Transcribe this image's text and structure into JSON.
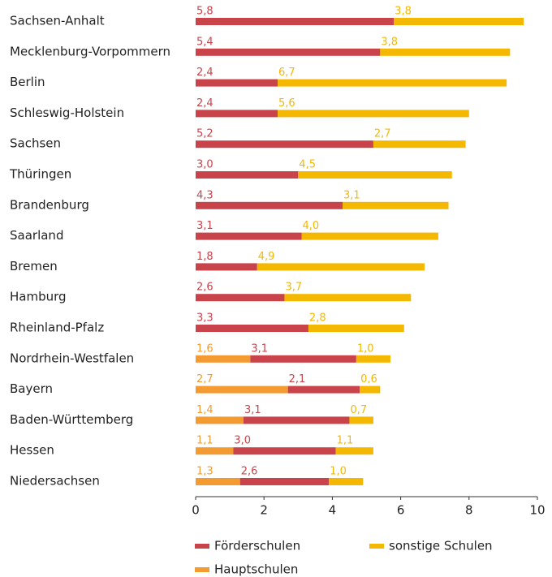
{
  "chart_data": {
    "type": "bar",
    "orientation": "horizontal",
    "stacked": true,
    "categories": [
      "Sachsen-Anhalt",
      "Mecklenburg-Vorpommern",
      "Berlin",
      "Schleswig-Holstein",
      "Sachsen",
      "Thüringen",
      "Brandenburg",
      "Saarland",
      "Bremen",
      "Hamburg",
      "Rheinland-Pfalz",
      "Nordrhein-Westfalen",
      "Bayern",
      "Baden-Württemberg",
      "Hessen",
      "Niedersachsen"
    ],
    "series": [
      {
        "name": "Förderschulen",
        "color": "#c9434b",
        "values": [
          5.8,
          5.4,
          2.4,
          2.4,
          5.2,
          3.0,
          4.3,
          3.1,
          1.8,
          2.6,
          3.3,
          3.1,
          2.1,
          3.1,
          3.0,
          2.6
        ],
        "value_labels": [
          "5,8",
          "5,4",
          "2,4",
          "2,4",
          "5,2",
          "3,0",
          "4,3",
          "3,1",
          "1,8",
          "2,6",
          "3,3",
          "3,1",
          "2,1",
          "3,1",
          "3,0",
          "2,6"
        ]
      },
      {
        "name": "sonstige Schulen",
        "color": "#f5b800",
        "values": [
          3.8,
          3.8,
          6.7,
          5.6,
          2.7,
          4.5,
          3.1,
          4.0,
          4.9,
          3.7,
          2.8,
          1.0,
          0.6,
          0.7,
          1.1,
          1.0
        ],
        "value_labels": [
          "3,8",
          "3,8",
          "6,7",
          "5,6",
          "2,7",
          "4,5",
          "3,1",
          "4,0",
          "4,9",
          "3,7",
          "2,8",
          "1,0",
          "0,6",
          "0,7",
          "1,1",
          "1,0"
        ]
      },
      {
        "name": "Hauptschulen",
        "color": "#f39b30",
        "values": [
          null,
          null,
          null,
          null,
          null,
          null,
          null,
          null,
          null,
          null,
          null,
          1.6,
          2.7,
          1.4,
          1.1,
          1.3
        ],
        "value_labels": [
          null,
          null,
          null,
          null,
          null,
          null,
          null,
          null,
          null,
          null,
          null,
          "1,6",
          "2,7",
          "1,4",
          "1,1",
          "1,3"
        ]
      }
    ],
    "xlim": [
      0,
      10
    ],
    "xticks": [
      0,
      2,
      4,
      6,
      8,
      10
    ]
  }
}
